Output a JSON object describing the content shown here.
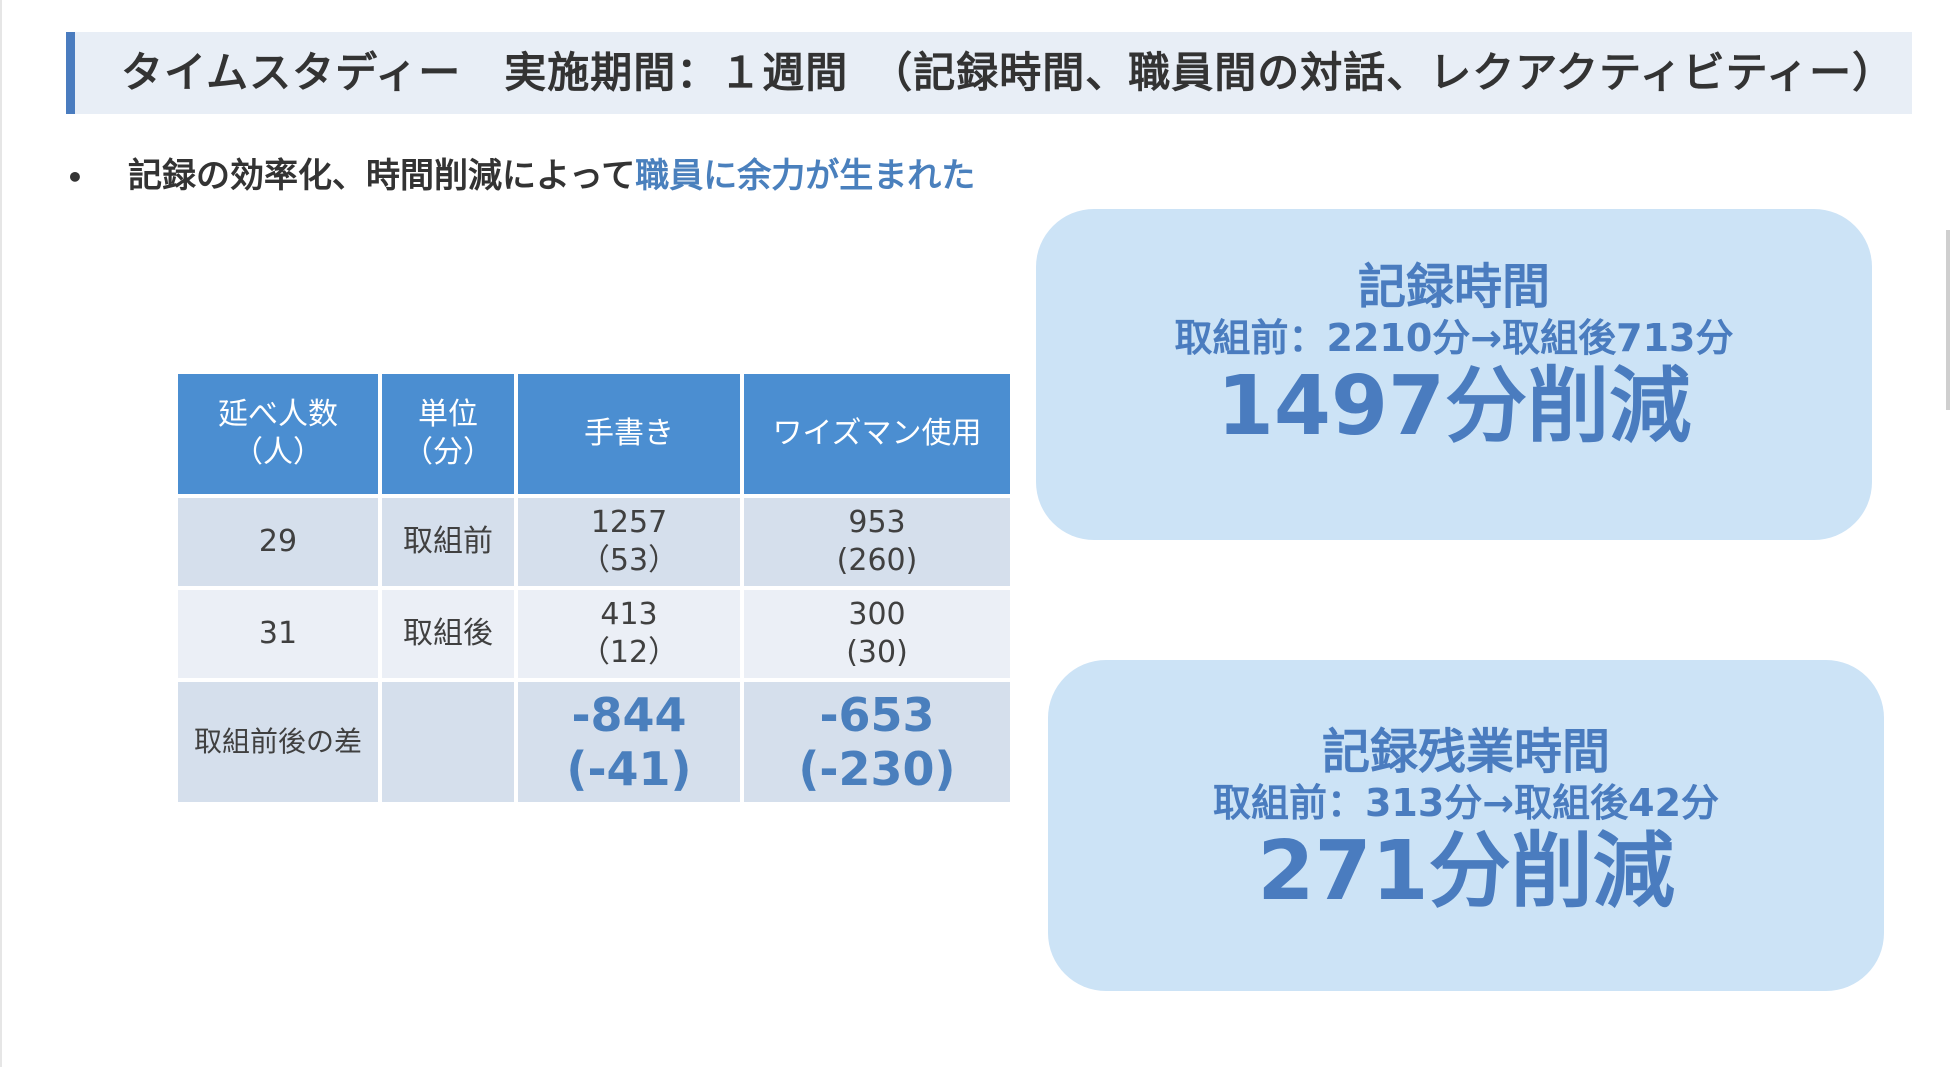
{
  "title": "タイムスタディー　実施期間：１週間　（記録時間、職員間の対話、レクアクティビティー）",
  "bullet": {
    "prefix": "記録の効率化、時間削減によって",
    "highlight": "職員に余力が生まれた"
  },
  "table": {
    "headers": [
      {
        "line1": "延べ人数",
        "line2": "（人）"
      },
      {
        "line1": "単位",
        "line2": "（分）"
      },
      {
        "line1": "手書き",
        "line2": ""
      },
      {
        "line1": "ワイズマン使用",
        "line2": ""
      }
    ],
    "rows": [
      {
        "count": "29",
        "unit": "取組前",
        "handwritten": "1257",
        "handwritten_sub": "（53）",
        "wiseman": "953",
        "wiseman_sub": "(260)"
      },
      {
        "count": "31",
        "unit": "取組後",
        "handwritten": "413",
        "handwritten_sub": "（12）",
        "wiseman": "300",
        "wiseman_sub": "(30)"
      }
    ],
    "diff": {
      "label": "取組前後の差",
      "unit": "",
      "handwritten": "-844",
      "handwritten_sub": "(-41)",
      "wiseman": "-653",
      "wiseman_sub": "(-230)"
    }
  },
  "box1": {
    "title": "記録時間",
    "sub": "取組前：2210分→取組後713分",
    "big": "1497分削減"
  },
  "box2": {
    "title": "記録残業時間",
    "sub": "取組前：313分→取組後42分",
    "big": "271分削減"
  },
  "colors": {
    "accent": "#4a7cbf",
    "header_fill": "#4b8ed1",
    "box_fill": "#cce3f6",
    "title_bar": "#e8eef6"
  }
}
